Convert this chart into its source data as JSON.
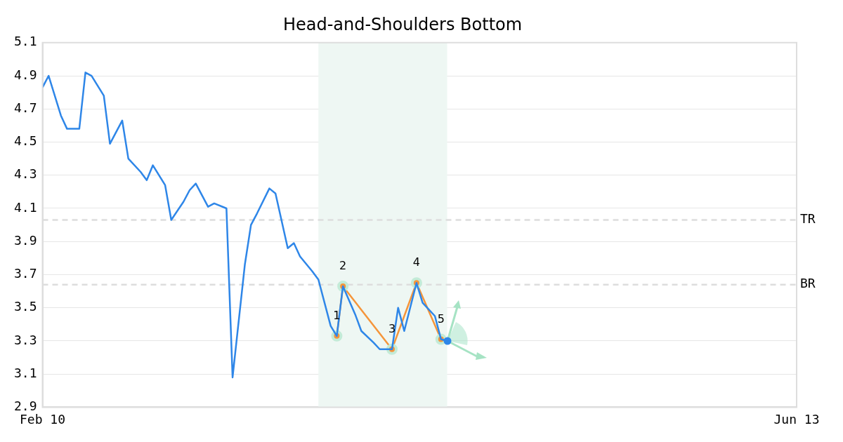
{
  "chart_data": {
    "type": "line",
    "title": "Head-and-Shoulders Bottom",
    "x": [
      "--02-10",
      "--02-11",
      "--02-13",
      "--02-14",
      "--02-16",
      "--02-17",
      "--02-18",
      "--02-20",
      "--02-21",
      "--02-23",
      "--02-24",
      "--02-26",
      "--02-27",
      "--02-28",
      "--03-02",
      "--03-03",
      "--03-05",
      "--03-06",
      "--03-07",
      "--03-09",
      "--03-10",
      "--03-12",
      "--03-13",
      "--03-15",
      "--03-16",
      "--03-17",
      "--03-19",
      "--03-20",
      "--03-22",
      "--03-23",
      "--03-24",
      "--03-26",
      "--03-27",
      "--03-29",
      "--03-30",
      "--03-31",
      "--04-02",
      "--04-03",
      "--04-05",
      "--04-06",
      "--04-08",
      "--04-09",
      "--04-10",
      "--04-12",
      "--04-13",
      "--04-15",
      "--04-16",
      "--04-17"
    ],
    "xlim": [
      "--02-10",
      "--06-13"
    ],
    "xticks": [
      {
        "value": "--02-10",
        "label": "Feb 10"
      },
      {
        "value": "--06-13",
        "label": "Jun 13"
      }
    ],
    "ylim": [
      2.9,
      5.1
    ],
    "yticks": [
      2.9,
      3.1,
      3.3,
      3.5,
      3.7,
      3.9,
      4.1,
      4.3,
      4.5,
      4.7,
      4.9,
      5.1
    ],
    "grid": "y",
    "legend": false,
    "marker": "none",
    "series": [
      {
        "color": "#2e86e8",
        "values": [
          4.83,
          4.9,
          4.66,
          4.58,
          4.58,
          4.92,
          4.9,
          4.78,
          4.49,
          4.63,
          4.4,
          4.32,
          4.27,
          4.36,
          4.24,
          4.03,
          4.14,
          4.21,
          4.25,
          4.11,
          4.13,
          4.1,
          3.08,
          3.76,
          4.0,
          4.07,
          4.22,
          4.19,
          3.86,
          3.89,
          3.81,
          3.72,
          3.67,
          3.39,
          3.33,
          3.63,
          3.46,
          3.36,
          3.29,
          3.25,
          3.25,
          3.5,
          3.36,
          3.65,
          3.53,
          3.45,
          3.31,
          3.3
        ]
      },
      {
        "type": "line",
        "color": "#f5953a",
        "x": [
          "--03-30",
          "--03-31",
          "--04-08",
          "--04-12",
          "--04-16"
        ],
        "values": [
          3.33,
          3.63,
          3.25,
          3.65,
          3.31
        ],
        "marker": "circle"
      }
    ],
    "annotations": [
      {
        "text": "1",
        "x": "--03-30",
        "y": 3.33
      },
      {
        "text": "2",
        "x": "--03-31",
        "y": 3.63
      },
      {
        "text": "3",
        "x": "--04-08",
        "y": 3.25
      },
      {
        "text": "4",
        "x": "--04-12",
        "y": 3.65
      },
      {
        "text": "5",
        "x": "--04-16",
        "y": 3.31
      }
    ],
    "ref_lines": [
      {
        "axis": "y",
        "value": 4.03,
        "label": "TR",
        "color": "#dddddd",
        "line_style": "dashed"
      },
      {
        "axis": "y",
        "value": 3.64,
        "label": "BR",
        "color": "#dddddd",
        "line_style": "dashed"
      }
    ],
    "bands": [
      {
        "axis": "x",
        "from": "--03-27",
        "to": "--04-17",
        "color": "#eef7f3"
      }
    ]
  }
}
